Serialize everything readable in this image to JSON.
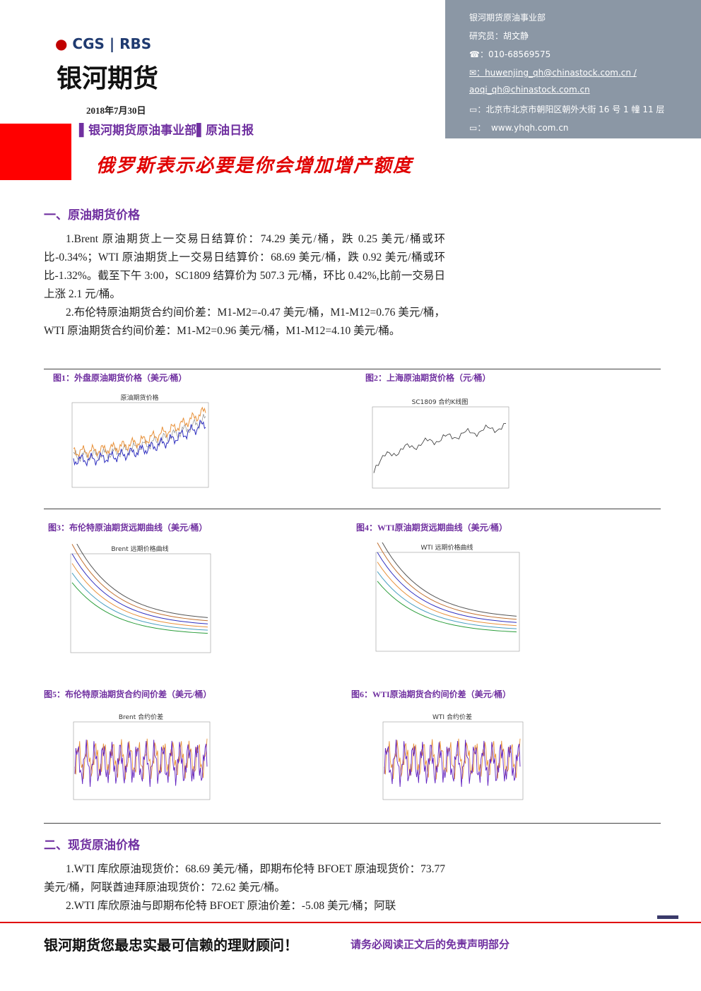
{
  "header": {
    "logo_brand": "CGS",
    "logo_partner": "RBS",
    "company": "银河期货",
    "date": "2018年7月30日",
    "department": "银河期货原油事业部",
    "report": "原油日报"
  },
  "contact": {
    "department": "银河期货原油事业部",
    "researcher": "研究员：胡文静",
    "phone": "010-68569575",
    "email_1": "huwenjing_qh@chinastock.com.cn /",
    "email_2": "aoqi_qh@chinastock.com.cn",
    "address": "北京市北京市朝阳区朝外大街 16 号 1 幢 11 层",
    "website": "www.yhqh.com.cn"
  },
  "headline": "俄罗斯表示必要是你会增加增产额度",
  "sections": [
    {
      "heading": "一、原油期货价格",
      "paragraphs": [
        "1.Brent 原油期货上一交易日结算价：74.29 美元/桶，跌 0.25 美元/桶或环比-0.34%；WTI 原油期货上一交易日结算价：68.69 美元/桶，跌 0.92 美元/桶或环比-1.32%。截至下午 3:00，SC1809 结算价为 507.3 元/桶，环比 0.42%,比前一交易日上涨 2.1 元/桶。",
        "2.布伦特原油期货合约间价差：M1-M2=-0.47 美元/桶，M1-M12=0.76 美元/桶，WTI 原油期货合约间价差：M1-M2=0.96 美元/桶，M1-M12=4.10 美元/桶。"
      ]
    },
    {
      "heading": "二、现货原油价格",
      "paragraphs": [
        "1.WTI 库欣原油现货价：68.69 美元/桶，即期布伦特 BFOET 原油现货价：73.77 美元/桶，阿联酋迪拜原油现货价：72.62 美元/桶。",
        "2.WTI 库欣原油与即期布伦特 BFOET 原油价差：-5.08 美元/桶；阿联"
      ]
    }
  ],
  "figures": [
    {
      "caption": "图1：外盘原油期货价格（美元/桶）",
      "chart_title": "原油期货价格"
    },
    {
      "caption": "图2：上海原油期货价格（元/桶）",
      "chart_title": "SC1809 合约K线图"
    },
    {
      "caption": "图3：布伦特原油期货远期曲线（美元/桶）",
      "chart_title": "Brent 远期价格曲线"
    },
    {
      "caption": "图4：WTI原油期货远期曲线（美元/桶）",
      "chart_title": "WTI 远期价格曲线"
    },
    {
      "caption": "图5：布伦特原油期货合约间价差（美元/桶）",
      "chart_title": "Brent 合约价差"
    },
    {
      "caption": "图6：WTI原油期货合约间价差（美元/桶）",
      "chart_title": "WTI 合约价差"
    }
  ],
  "footer": {
    "slogan": "银河期货您最忠实最可信赖的理财顾问！",
    "disclaimer": "请务必阅读正文后的免责声明部分"
  }
}
